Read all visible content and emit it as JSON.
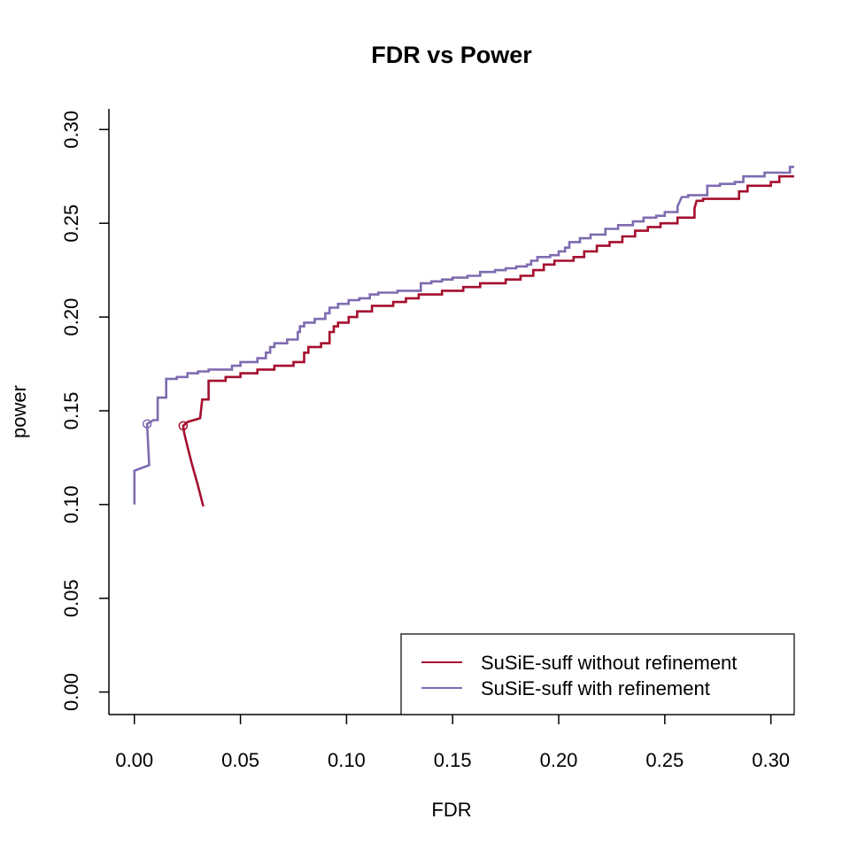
{
  "chart_data": {
    "type": "line",
    "title": "FDR vs Power",
    "xlabel": "FDR",
    "ylabel": "power",
    "xlim": [
      -0.012,
      0.311
    ],
    "ylim": [
      -0.012,
      0.311
    ],
    "xticks": [
      "0.00",
      "0.05",
      "0.10",
      "0.15",
      "0.20",
      "0.25",
      "0.30"
    ],
    "yticks": [
      "0.00",
      "0.05",
      "0.10",
      "0.15",
      "0.20",
      "0.25",
      "0.30"
    ],
    "grid": false,
    "legend_position": "bottom-right",
    "series": [
      {
        "name": "SuSiE-suff without refinement",
        "color": "#A50F2D",
        "marker": {
          "x": 0.023,
          "y": 0.142
        },
        "points": [
          [
            0.0325,
            0.099
          ],
          [
            0.03,
            0.11
          ],
          [
            0.027,
            0.122
          ],
          [
            0.025,
            0.131
          ],
          [
            0.0235,
            0.138
          ],
          [
            0.023,
            0.142
          ],
          [
            0.025,
            0.144
          ],
          [
            0.031,
            0.146
          ],
          [
            0.032,
            0.156
          ],
          [
            0.035,
            0.156
          ],
          [
            0.035,
            0.166
          ],
          [
            0.043,
            0.166
          ],
          [
            0.043,
            0.168
          ],
          [
            0.05,
            0.168
          ],
          [
            0.05,
            0.17
          ],
          [
            0.058,
            0.17
          ],
          [
            0.058,
            0.172
          ],
          [
            0.066,
            0.172
          ],
          [
            0.066,
            0.174
          ],
          [
            0.075,
            0.174
          ],
          [
            0.075,
            0.176
          ],
          [
            0.08,
            0.176
          ],
          [
            0.08,
            0.181
          ],
          [
            0.082,
            0.181
          ],
          [
            0.082,
            0.184
          ],
          [
            0.088,
            0.184
          ],
          [
            0.088,
            0.186
          ],
          [
            0.092,
            0.186
          ],
          [
            0.092,
            0.192
          ],
          [
            0.094,
            0.192
          ],
          [
            0.094,
            0.195
          ],
          [
            0.096,
            0.195
          ],
          [
            0.096,
            0.197
          ],
          [
            0.101,
            0.197
          ],
          [
            0.101,
            0.2
          ],
          [
            0.105,
            0.2
          ],
          [
            0.105,
            0.203
          ],
          [
            0.112,
            0.203
          ],
          [
            0.112,
            0.206
          ],
          [
            0.122,
            0.206
          ],
          [
            0.122,
            0.208
          ],
          [
            0.128,
            0.208
          ],
          [
            0.128,
            0.21
          ],
          [
            0.134,
            0.21
          ],
          [
            0.134,
            0.212
          ],
          [
            0.145,
            0.212
          ],
          [
            0.145,
            0.214
          ],
          [
            0.155,
            0.214
          ],
          [
            0.155,
            0.216
          ],
          [
            0.163,
            0.216
          ],
          [
            0.163,
            0.218
          ],
          [
            0.175,
            0.218
          ],
          [
            0.175,
            0.22
          ],
          [
            0.182,
            0.22
          ],
          [
            0.182,
            0.222
          ],
          [
            0.188,
            0.222
          ],
          [
            0.188,
            0.225
          ],
          [
            0.193,
            0.225
          ],
          [
            0.193,
            0.228
          ],
          [
            0.198,
            0.228
          ],
          [
            0.198,
            0.23
          ],
          [
            0.207,
            0.23
          ],
          [
            0.207,
            0.232
          ],
          [
            0.212,
            0.232
          ],
          [
            0.212,
            0.235
          ],
          [
            0.218,
            0.235
          ],
          [
            0.218,
            0.238
          ],
          [
            0.224,
            0.238
          ],
          [
            0.224,
            0.24
          ],
          [
            0.23,
            0.24
          ],
          [
            0.23,
            0.243
          ],
          [
            0.236,
            0.243
          ],
          [
            0.236,
            0.246
          ],
          [
            0.242,
            0.246
          ],
          [
            0.242,
            0.248
          ],
          [
            0.248,
            0.248
          ],
          [
            0.248,
            0.25
          ],
          [
            0.256,
            0.25
          ],
          [
            0.256,
            0.253
          ],
          [
            0.264,
            0.253
          ],
          [
            0.264,
            0.258
          ],
          [
            0.265,
            0.262
          ],
          [
            0.268,
            0.262
          ],
          [
            0.268,
            0.263
          ],
          [
            0.285,
            0.263
          ],
          [
            0.285,
            0.267
          ],
          [
            0.289,
            0.267
          ],
          [
            0.289,
            0.27
          ],
          [
            0.3,
            0.27
          ],
          [
            0.3,
            0.272
          ],
          [
            0.304,
            0.272
          ],
          [
            0.304,
            0.275
          ],
          [
            0.311,
            0.275
          ]
        ]
      },
      {
        "name": "SuSiE-suff with refinement",
        "color": "#7E6BB0",
        "marker": {
          "x": 0.006,
          "y": 0.143
        },
        "points": [
          [
            0.0,
            0.1
          ],
          [
            0.0,
            0.118
          ],
          [
            0.007,
            0.121
          ],
          [
            0.006,
            0.143
          ],
          [
            0.009,
            0.145
          ],
          [
            0.011,
            0.145
          ],
          [
            0.011,
            0.157
          ],
          [
            0.015,
            0.157
          ],
          [
            0.015,
            0.167
          ],
          [
            0.02,
            0.167
          ],
          [
            0.02,
            0.168
          ],
          [
            0.025,
            0.168
          ],
          [
            0.025,
            0.17
          ],
          [
            0.03,
            0.17
          ],
          [
            0.03,
            0.171
          ],
          [
            0.035,
            0.171
          ],
          [
            0.035,
            0.172
          ],
          [
            0.046,
            0.172
          ],
          [
            0.046,
            0.174
          ],
          [
            0.05,
            0.174
          ],
          [
            0.05,
            0.176
          ],
          [
            0.058,
            0.176
          ],
          [
            0.058,
            0.178
          ],
          [
            0.062,
            0.178
          ],
          [
            0.062,
            0.181
          ],
          [
            0.064,
            0.181
          ],
          [
            0.064,
            0.184
          ],
          [
            0.066,
            0.184
          ],
          [
            0.066,
            0.186
          ],
          [
            0.072,
            0.186
          ],
          [
            0.072,
            0.188
          ],
          [
            0.077,
            0.188
          ],
          [
            0.077,
            0.192
          ],
          [
            0.078,
            0.192
          ],
          [
            0.078,
            0.195
          ],
          [
            0.08,
            0.195
          ],
          [
            0.08,
            0.197
          ],
          [
            0.085,
            0.197
          ],
          [
            0.085,
            0.199
          ],
          [
            0.09,
            0.199
          ],
          [
            0.09,
            0.202
          ],
          [
            0.092,
            0.202
          ],
          [
            0.092,
            0.205
          ],
          [
            0.096,
            0.205
          ],
          [
            0.096,
            0.207
          ],
          [
            0.101,
            0.207
          ],
          [
            0.101,
            0.209
          ],
          [
            0.106,
            0.209
          ],
          [
            0.106,
            0.21
          ],
          [
            0.111,
            0.21
          ],
          [
            0.111,
            0.212
          ],
          [
            0.115,
            0.212
          ],
          [
            0.115,
            0.213
          ],
          [
            0.124,
            0.213
          ],
          [
            0.124,
            0.214
          ],
          [
            0.135,
            0.214
          ],
          [
            0.135,
            0.218
          ],
          [
            0.14,
            0.218
          ],
          [
            0.14,
            0.219
          ],
          [
            0.145,
            0.219
          ],
          [
            0.145,
            0.22
          ],
          [
            0.15,
            0.22
          ],
          [
            0.15,
            0.221
          ],
          [
            0.157,
            0.221
          ],
          [
            0.157,
            0.222
          ],
          [
            0.163,
            0.222
          ],
          [
            0.163,
            0.224
          ],
          [
            0.17,
            0.224
          ],
          [
            0.17,
            0.225
          ],
          [
            0.175,
            0.225
          ],
          [
            0.175,
            0.226
          ],
          [
            0.18,
            0.226
          ],
          [
            0.18,
            0.227
          ],
          [
            0.185,
            0.227
          ],
          [
            0.185,
            0.228
          ],
          [
            0.187,
            0.228
          ],
          [
            0.187,
            0.23
          ],
          [
            0.19,
            0.23
          ],
          [
            0.19,
            0.232
          ],
          [
            0.196,
            0.232
          ],
          [
            0.196,
            0.233
          ],
          [
            0.2,
            0.233
          ],
          [
            0.2,
            0.235
          ],
          [
            0.203,
            0.235
          ],
          [
            0.203,
            0.237
          ],
          [
            0.205,
            0.237
          ],
          [
            0.205,
            0.24
          ],
          [
            0.21,
            0.24
          ],
          [
            0.21,
            0.242
          ],
          [
            0.215,
            0.242
          ],
          [
            0.215,
            0.244
          ],
          [
            0.222,
            0.244
          ],
          [
            0.222,
            0.247
          ],
          [
            0.228,
            0.247
          ],
          [
            0.228,
            0.249
          ],
          [
            0.235,
            0.249
          ],
          [
            0.235,
            0.251
          ],
          [
            0.24,
            0.251
          ],
          [
            0.24,
            0.253
          ],
          [
            0.246,
            0.253
          ],
          [
            0.246,
            0.254
          ],
          [
            0.25,
            0.254
          ],
          [
            0.25,
            0.256
          ],
          [
            0.256,
            0.256
          ],
          [
            0.256,
            0.259
          ],
          [
            0.258,
            0.264
          ],
          [
            0.261,
            0.264
          ],
          [
            0.261,
            0.265
          ],
          [
            0.27,
            0.265
          ],
          [
            0.27,
            0.27
          ],
          [
            0.276,
            0.27
          ],
          [
            0.276,
            0.271
          ],
          [
            0.283,
            0.271
          ],
          [
            0.283,
            0.272
          ],
          [
            0.287,
            0.272
          ],
          [
            0.287,
            0.275
          ],
          [
            0.297,
            0.275
          ],
          [
            0.297,
            0.277
          ],
          [
            0.309,
            0.277
          ],
          [
            0.309,
            0.28
          ],
          [
            0.311,
            0.28
          ]
        ]
      }
    ]
  }
}
